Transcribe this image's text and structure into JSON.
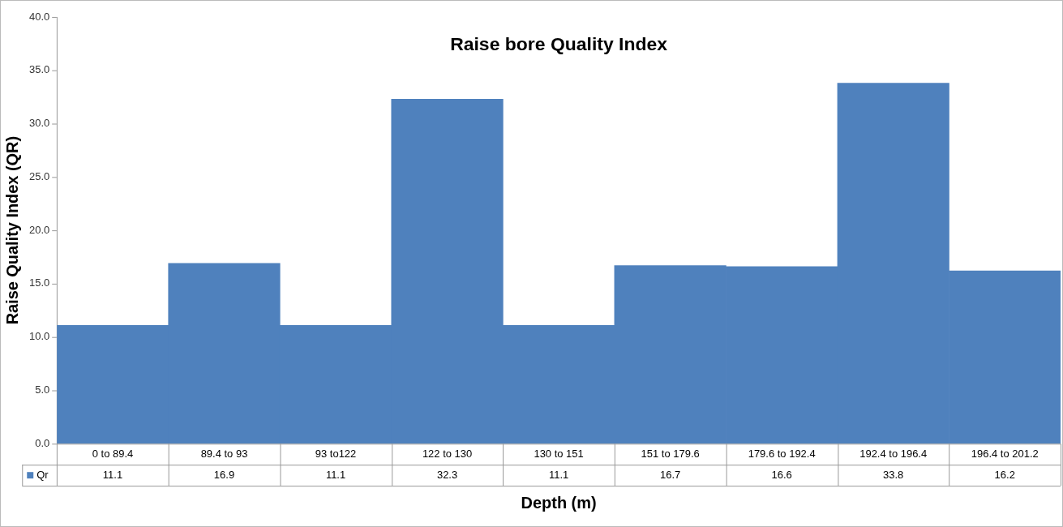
{
  "chart_data": {
    "type": "bar",
    "title": "Raise bore Quality Index",
    "xlabel": "Depth (m)",
    "ylabel": "Raise Quality Index (QR)",
    "categories": [
      "0 to 89.4",
      "89.4 to 93",
      "93 to122",
      "122 to 130",
      "130 to 151",
      "151 to 179.6",
      "179.6 to 192.4",
      "192.4 to 196.4",
      "196.4 to 201.2"
    ],
    "series": [
      {
        "name": "Qr",
        "color": "#4f81bd",
        "values": [
          11.1,
          16.9,
          11.1,
          32.3,
          11.1,
          16.7,
          16.6,
          33.8,
          16.2
        ]
      }
    ],
    "ylim": [
      0,
      40
    ],
    "yticks": [
      {
        "value": 0,
        "label": "0.0"
      },
      {
        "value": 5,
        "label": "5.0"
      },
      {
        "value": 10,
        "label": "10.0"
      },
      {
        "value": 15,
        "label": "15.0"
      },
      {
        "value": 20,
        "label": "20.0"
      },
      {
        "value": 25,
        "label": "25.0"
      },
      {
        "value": 30,
        "label": "30.0"
      },
      {
        "value": 35,
        "label": "35.0"
      },
      {
        "value": 40,
        "label": "40.0"
      }
    ],
    "grid": false,
    "legend": "bottom",
    "data_labels": true
  }
}
